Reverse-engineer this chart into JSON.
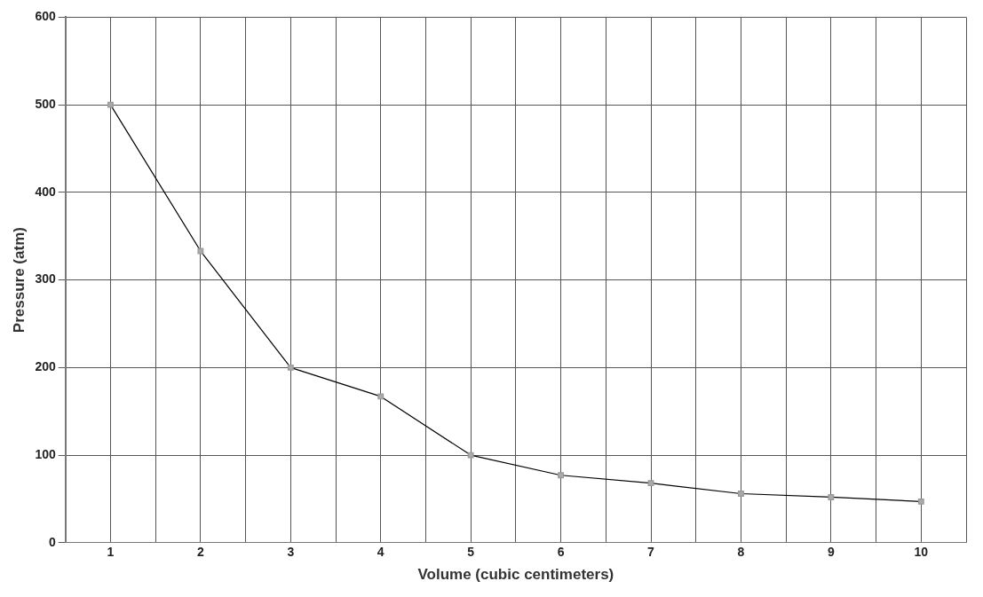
{
  "chart_data": {
    "type": "line",
    "xlabel": "Volume (cubic centimeters)",
    "ylabel": "Pressure (atm)",
    "x": [
      1,
      2,
      3,
      4,
      5,
      6,
      7,
      8,
      9,
      10
    ],
    "series": [
      {
        "color": "#000000",
        "values": [
          500,
          333,
          200,
          167,
          100,
          77,
          68,
          56,
          52,
          47
        ]
      }
    ],
    "xlim": [
      0.5,
      10.5
    ],
    "xticks": [
      {
        "value": 0.5,
        "label": null
      },
      1,
      {
        "value": 1.5,
        "label": null
      },
      2,
      {
        "value": 2.5,
        "label": null
      },
      3,
      {
        "value": 3.5,
        "label": null
      },
      4,
      {
        "value": 4.5,
        "label": null
      },
      5,
      {
        "value": 5.5,
        "label": null
      },
      6,
      {
        "value": 6.5,
        "label": null
      },
      7,
      {
        "value": 7.5,
        "label": null
      },
      8,
      {
        "value": 8.5,
        "label": null
      },
      9,
      {
        "value": 9.5,
        "label": null
      },
      10,
      {
        "value": 10.5,
        "label": null
      }
    ],
    "ylim": [
      0,
      600
    ],
    "yticks": [
      0,
      100,
      200,
      300,
      400,
      500,
      600
    ],
    "grid": true,
    "legend": false,
    "marker": "square",
    "line_style": "solid"
  }
}
